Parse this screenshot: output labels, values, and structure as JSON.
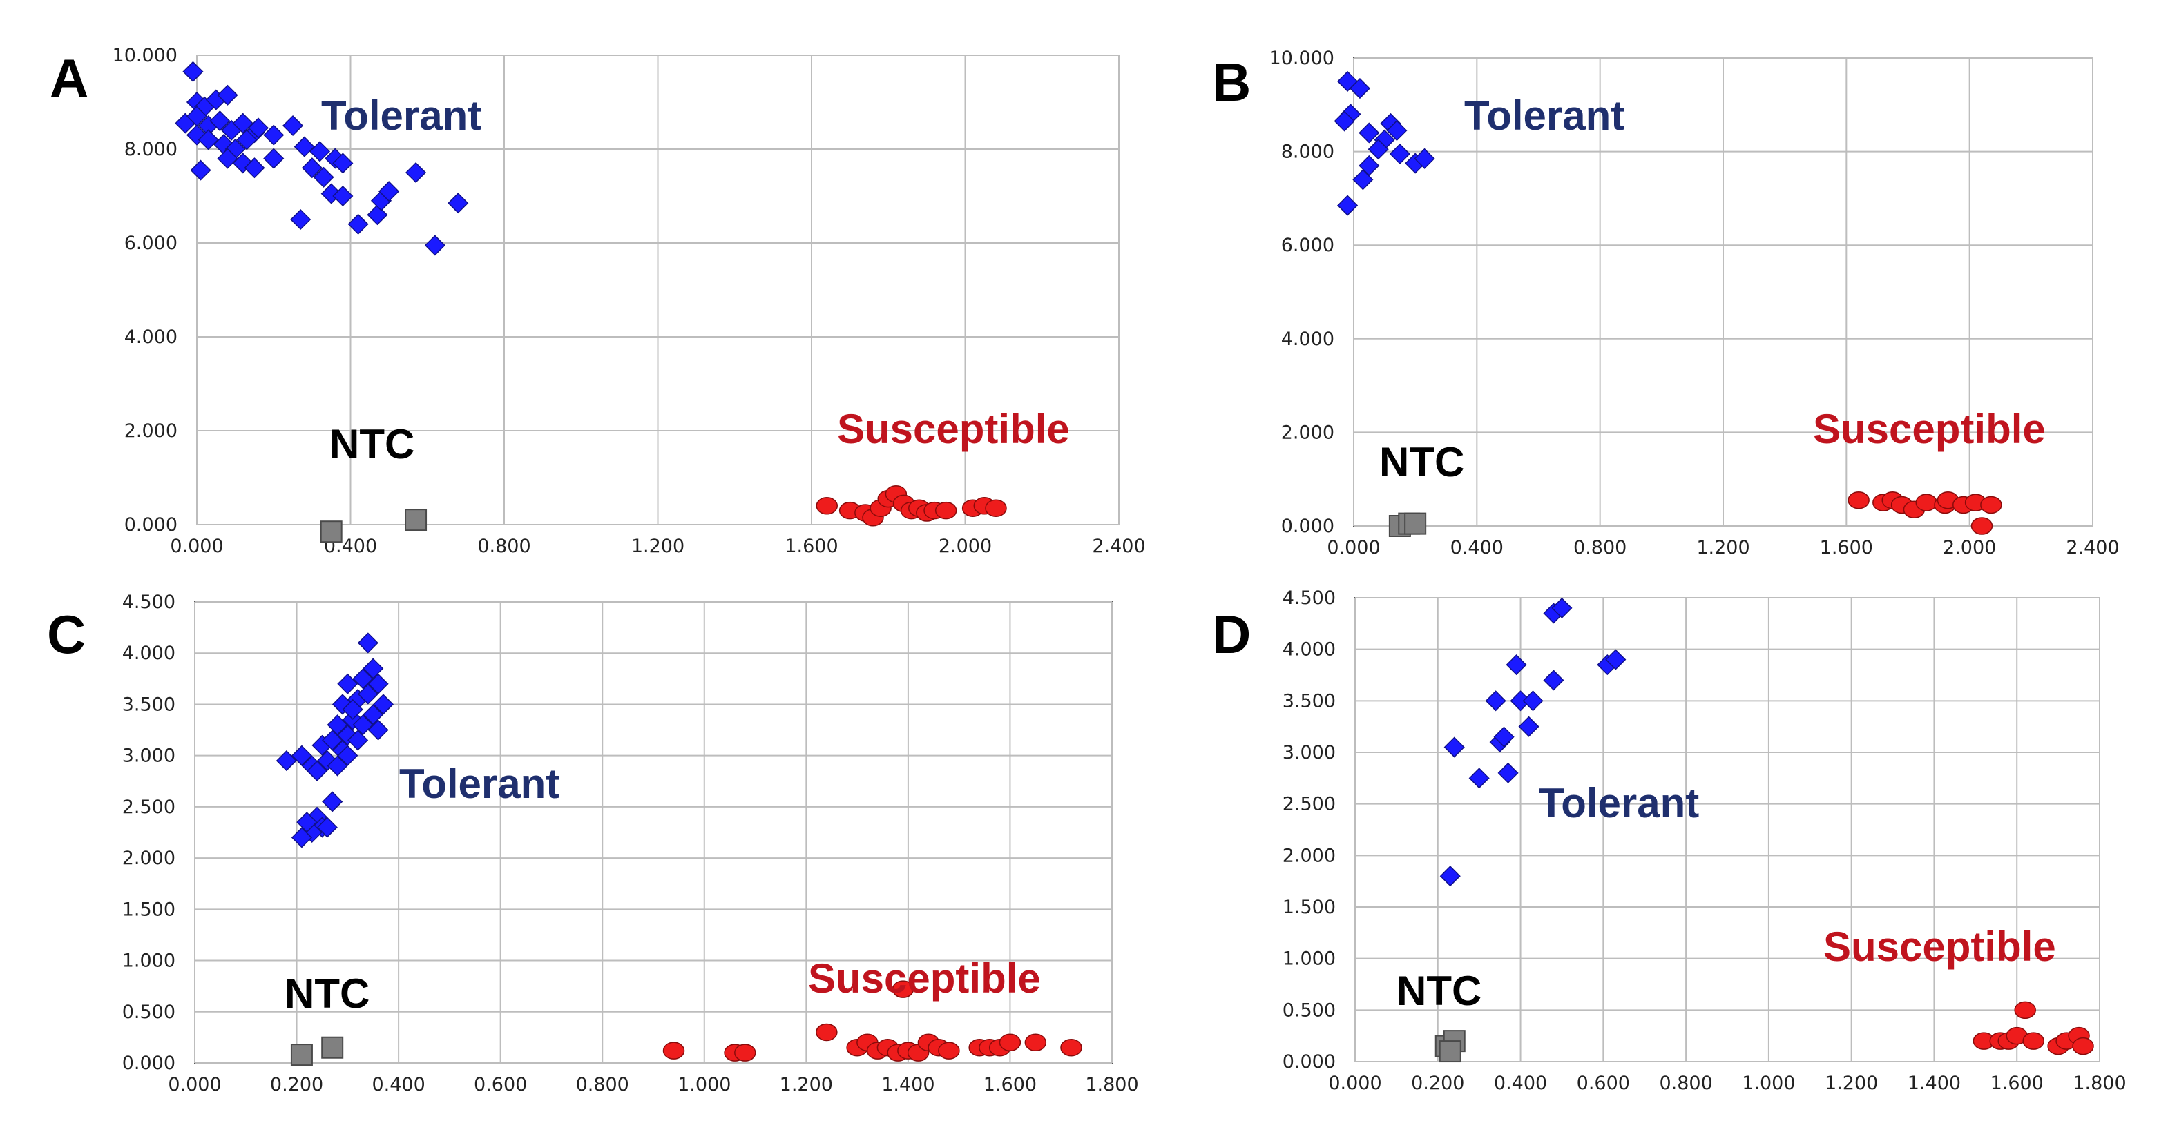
{
  "colors": {
    "tolerant": "#1a1aff",
    "susceptible": "#ee1c1c",
    "ntc": "#808080",
    "tolerant_label": "#1f2f6e",
    "susceptible_label": "#c0141e",
    "ntc_label": "#000000"
  },
  "chart_data": [
    {
      "panel": "A",
      "type": "scatter",
      "xlim": [
        0,
        2.4
      ],
      "ylim": [
        0,
        10
      ],
      "xticks": [
        "0.000",
        "0.400",
        "0.800",
        "1.200",
        "1.600",
        "2.000",
        "2.400"
      ],
      "yticks": [
        "0.000",
        "2.000",
        "4.000",
        "6.000",
        "8.000",
        "10.000"
      ],
      "x_tick_values": [
        0,
        0.4,
        0.8,
        1.2,
        1.6,
        2.0,
        2.4
      ],
      "y_tick_values": [
        0,
        2,
        4,
        6,
        8,
        10
      ],
      "grid": true,
      "labels": {
        "tolerant": "Tolerant",
        "susceptible": "Susceptible",
        "ntc": "NTC"
      },
      "groups": [
        {
          "key": "tolerant",
          "marker": "diamond",
          "points": [
            [
              -0.01,
              9.65
            ],
            [
              0.0,
              9.0
            ],
            [
              0.02,
              8.9
            ],
            [
              0.05,
              9.05
            ],
            [
              0.08,
              9.15
            ],
            [
              -0.03,
              8.55
            ],
            [
              0.0,
              8.7
            ],
            [
              0.03,
              8.5
            ],
            [
              0.06,
              8.6
            ],
            [
              0.09,
              8.4
            ],
            [
              0.12,
              8.55
            ],
            [
              0.15,
              8.35
            ],
            [
              0.0,
              8.3
            ],
            [
              0.03,
              8.2
            ],
            [
              0.07,
              8.1
            ],
            [
              0.1,
              8.0
            ],
            [
              0.13,
              8.2
            ],
            [
              0.16,
              8.45
            ],
            [
              0.2,
              8.3
            ],
            [
              0.25,
              8.5
            ],
            [
              0.08,
              7.8
            ],
            [
              0.12,
              7.7
            ],
            [
              0.15,
              7.6
            ],
            [
              0.2,
              7.8
            ],
            [
              0.01,
              7.55
            ],
            [
              0.3,
              7.6
            ],
            [
              0.33,
              7.4
            ],
            [
              0.36,
              7.8
            ],
            [
              0.28,
              8.05
            ],
            [
              0.32,
              7.95
            ],
            [
              0.38,
              7.7
            ],
            [
              0.35,
              7.05
            ],
            [
              0.38,
              7.0
            ],
            [
              0.27,
              6.5
            ],
            [
              0.42,
              6.4
            ],
            [
              0.47,
              6.6
            ],
            [
              0.48,
              6.9
            ],
            [
              0.5,
              7.1
            ],
            [
              0.57,
              7.5
            ],
            [
              0.62,
              5.95
            ],
            [
              0.68,
              6.85
            ]
          ]
        },
        {
          "key": "susceptible",
          "marker": "circle",
          "points": [
            [
              1.64,
              0.4
            ],
            [
              1.7,
              0.3
            ],
            [
              1.74,
              0.25
            ],
            [
              1.76,
              0.15
            ],
            [
              1.78,
              0.35
            ],
            [
              1.8,
              0.55
            ],
            [
              1.82,
              0.65
            ],
            [
              1.84,
              0.45
            ],
            [
              1.86,
              0.3
            ],
            [
              1.88,
              0.35
            ],
            [
              1.9,
              0.25
            ],
            [
              1.92,
              0.3
            ],
            [
              1.95,
              0.3
            ],
            [
              2.02,
              0.35
            ],
            [
              2.05,
              0.4
            ],
            [
              2.08,
              0.35
            ]
          ]
        },
        {
          "key": "ntc",
          "marker": "square",
          "points": [
            [
              0.35,
              -0.15
            ],
            [
              0.57,
              0.1
            ]
          ]
        }
      ]
    },
    {
      "panel": "B",
      "type": "scatter",
      "xlim": [
        0,
        2.4
      ],
      "ylim": [
        0,
        10
      ],
      "xticks": [
        "0.000",
        "0.400",
        "0.800",
        "1.200",
        "1.600",
        "2.000",
        "2.400"
      ],
      "yticks": [
        "0.000",
        "2.000",
        "4.000",
        "6.000",
        "8.000",
        "10.000"
      ],
      "x_tick_values": [
        0,
        0.4,
        0.8,
        1.2,
        1.6,
        2.0,
        2.4
      ],
      "y_tick_values": [
        0,
        2,
        4,
        6,
        8,
        10
      ],
      "grid": true,
      "labels": {
        "tolerant": "Tolerant",
        "susceptible": "Susceptible",
        "ntc": "NTC"
      },
      "groups": [
        {
          "key": "tolerant",
          "marker": "diamond",
          "points": [
            [
              -0.02,
              9.5
            ],
            [
              0.02,
              9.35
            ],
            [
              -0.01,
              8.8
            ],
            [
              -0.03,
              8.65
            ],
            [
              0.05,
              8.4
            ],
            [
              0.1,
              8.25
            ],
            [
              0.12,
              8.6
            ],
            [
              0.14,
              8.45
            ],
            [
              0.08,
              8.05
            ],
            [
              0.15,
              7.95
            ],
            [
              0.2,
              7.75
            ],
            [
              0.23,
              7.85
            ],
            [
              0.05,
              7.7
            ],
            [
              0.03,
              7.4
            ],
            [
              -0.02,
              6.85
            ]
          ]
        },
        {
          "key": "susceptible",
          "marker": "circle",
          "points": [
            [
              1.64,
              0.55
            ],
            [
              1.72,
              0.5
            ],
            [
              1.75,
              0.55
            ],
            [
              1.78,
              0.45
            ],
            [
              1.82,
              0.35
            ],
            [
              1.86,
              0.5
            ],
            [
              1.92,
              0.45
            ],
            [
              1.93,
              0.55
            ],
            [
              1.98,
              0.45
            ],
            [
              2.02,
              0.5
            ],
            [
              2.07,
              0.45
            ],
            [
              2.04,
              0.0
            ]
          ]
        },
        {
          "key": "ntc",
          "marker": "square",
          "points": [
            [
              0.15,
              0.0
            ],
            [
              0.18,
              0.05
            ],
            [
              0.2,
              0.05
            ]
          ]
        }
      ]
    },
    {
      "panel": "C",
      "type": "scatter",
      "xlim": [
        0,
        1.8
      ],
      "ylim": [
        0,
        4.5
      ],
      "xticks": [
        "0.000",
        "0.200",
        "0.400",
        "0.600",
        "0.800",
        "1.000",
        "1.200",
        "1.400",
        "1.600",
        "1.800"
      ],
      "yticks": [
        "0.000",
        "0.500",
        "1.000",
        "1.500",
        "2.000",
        "2.500",
        "3.000",
        "3.500",
        "4.000",
        "4.500"
      ],
      "x_tick_values": [
        0,
        0.2,
        0.4,
        0.6,
        0.8,
        1.0,
        1.2,
        1.4,
        1.6,
        1.8
      ],
      "y_tick_values": [
        0,
        0.5,
        1.0,
        1.5,
        2.0,
        2.5,
        3.0,
        3.5,
        4.0,
        4.5
      ],
      "grid": true,
      "labels": {
        "tolerant": "Tolerant",
        "susceptible": "Susceptible",
        "ntc": "NTC"
      },
      "groups": [
        {
          "key": "tolerant",
          "marker": "diamond",
          "points": [
            [
              0.18,
              2.95
            ],
            [
              0.21,
              3.0
            ],
            [
              0.23,
              2.9
            ],
            [
              0.24,
              2.85
            ],
            [
              0.26,
              2.95
            ],
            [
              0.28,
              2.9
            ],
            [
              0.25,
              3.1
            ],
            [
              0.27,
              3.15
            ],
            [
              0.29,
              3.05
            ],
            [
              0.3,
              3.2
            ],
            [
              0.32,
              3.15
            ],
            [
              0.31,
              3.35
            ],
            [
              0.33,
              3.3
            ],
            [
              0.35,
              3.4
            ],
            [
              0.29,
              3.5
            ],
            [
              0.32,
              3.55
            ],
            [
              0.34,
              3.6
            ],
            [
              0.3,
              3.7
            ],
            [
              0.33,
              3.75
            ],
            [
              0.36,
              3.7
            ],
            [
              0.35,
              3.85
            ],
            [
              0.34,
              4.1
            ],
            [
              0.37,
              3.5
            ],
            [
              0.36,
              3.25
            ],
            [
              0.31,
              3.45
            ],
            [
              0.28,
              3.3
            ],
            [
              0.3,
              3.0
            ],
            [
              0.24,
              2.4
            ],
            [
              0.25,
              2.3
            ],
            [
              0.23,
              2.25
            ],
            [
              0.27,
              2.55
            ],
            [
              0.21,
              2.2
            ],
            [
              0.22,
              2.35
            ],
            [
              0.26,
              2.3
            ]
          ]
        },
        {
          "key": "susceptible",
          "marker": "circle",
          "points": [
            [
              0.94,
              0.12
            ],
            [
              1.06,
              0.1
            ],
            [
              1.08,
              0.1
            ],
            [
              1.24,
              0.3
            ],
            [
              1.3,
              0.15
            ],
            [
              1.32,
              0.2
            ],
            [
              1.34,
              0.12
            ],
            [
              1.36,
              0.15
            ],
            [
              1.38,
              0.1
            ],
            [
              1.4,
              0.12
            ],
            [
              1.42,
              0.1
            ],
            [
              1.44,
              0.2
            ],
            [
              1.46,
              0.15
            ],
            [
              1.48,
              0.12
            ],
            [
              1.39,
              0.72
            ],
            [
              1.54,
              0.15
            ],
            [
              1.56,
              0.15
            ],
            [
              1.58,
              0.15
            ],
            [
              1.6,
              0.2
            ],
            [
              1.65,
              0.2
            ],
            [
              1.72,
              0.15
            ]
          ]
        },
        {
          "key": "ntc",
          "marker": "square",
          "points": [
            [
              0.21,
              0.08
            ],
            [
              0.27,
              0.15
            ]
          ]
        }
      ]
    },
    {
      "panel": "D",
      "type": "scatter",
      "xlim": [
        0,
        1.8
      ],
      "ylim": [
        0,
        4.5
      ],
      "xticks": [
        "0.000",
        "0.200",
        "0.400",
        "0.600",
        "0.800",
        "1.000",
        "1.200",
        "1.400",
        "1.600",
        "1.800"
      ],
      "yticks": [
        "0.000",
        "0.500",
        "1.000",
        "1.500",
        "2.000",
        "2.500",
        "3.000",
        "3.500",
        "4.000",
        "4.500"
      ],
      "x_tick_values": [
        0,
        0.2,
        0.4,
        0.6,
        0.8,
        1.0,
        1.2,
        1.4,
        1.6,
        1.8
      ],
      "y_tick_values": [
        0,
        0.5,
        1.0,
        1.5,
        2.0,
        2.5,
        3.0,
        3.5,
        4.0,
        4.5
      ],
      "grid": true,
      "labels": {
        "tolerant": "Tolerant",
        "susceptible": "Susceptible",
        "ntc": "NTC"
      },
      "groups": [
        {
          "key": "tolerant",
          "marker": "diamond",
          "points": [
            [
              0.23,
              1.8
            ],
            [
              0.24,
              3.05
            ],
            [
              0.3,
              2.75
            ],
            [
              0.34,
              3.5
            ],
            [
              0.35,
              3.1
            ],
            [
              0.36,
              3.15
            ],
            [
              0.37,
              2.8
            ],
            [
              0.39,
              3.85
            ],
            [
              0.4,
              3.5
            ],
            [
              0.42,
              3.25
            ],
            [
              0.43,
              3.5
            ],
            [
              0.48,
              3.7
            ],
            [
              0.48,
              4.35
            ],
            [
              0.5,
              4.4
            ],
            [
              0.61,
              3.85
            ],
            [
              0.63,
              3.9
            ]
          ]
        },
        {
          "key": "susceptible",
          "marker": "circle",
          "points": [
            [
              1.52,
              0.2
            ],
            [
              1.56,
              0.2
            ],
            [
              1.58,
              0.2
            ],
            [
              1.6,
              0.25
            ],
            [
              1.62,
              0.5
            ],
            [
              1.64,
              0.2
            ],
            [
              1.7,
              0.15
            ],
            [
              1.72,
              0.2
            ],
            [
              1.75,
              0.25
            ],
            [
              1.76,
              0.15
            ]
          ]
        },
        {
          "key": "ntc",
          "marker": "square",
          "points": [
            [
              0.22,
              0.15
            ],
            [
              0.24,
              0.2
            ],
            [
              0.23,
              0.1
            ]
          ]
        }
      ]
    }
  ]
}
